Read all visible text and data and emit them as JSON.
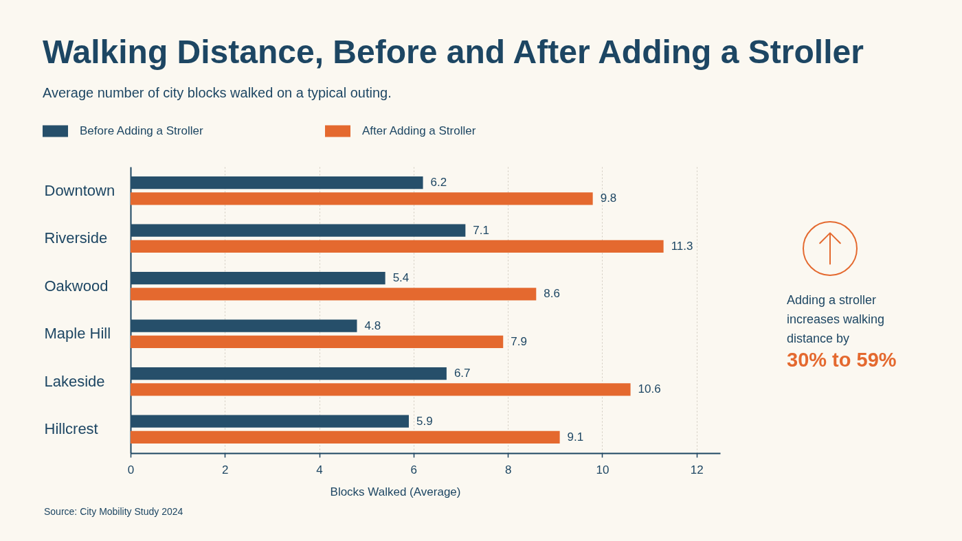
{
  "chart_data": {
    "type": "bar",
    "orientation": "horizontal",
    "title": "Walking Distance, Before and After Adding a Stroller",
    "subtitle": "Average number of city blocks walked on a typical outing.",
    "xlabel": "Blocks Walked (Average)",
    "categories": [
      "Downtown",
      "Riverside",
      "Oakwood",
      "Maple Hill",
      "Lakeside",
      "Hillcrest"
    ],
    "series": [
      {
        "name": "Before Adding a Stroller",
        "color": "#264f6a",
        "values": [
          6.2,
          7.1,
          5.4,
          4.8,
          6.7,
          5.9
        ]
      },
      {
        "name": "After Adding a Stroller",
        "color": "#e4692f",
        "values": [
          9.8,
          11.3,
          8.6,
          7.9,
          10.6,
          9.1
        ]
      }
    ],
    "xlim": [
      0,
      12.5
    ],
    "xticks": [
      0,
      2,
      4,
      6,
      8,
      10,
      12
    ],
    "grid": "x",
    "legend": "top left",
    "data_labels": true,
    "annotations": [
      "Adding a stroller increases walking distance by",
      "30% to 59%",
      "Source: City Mobility Study 2024"
    ]
  }
}
